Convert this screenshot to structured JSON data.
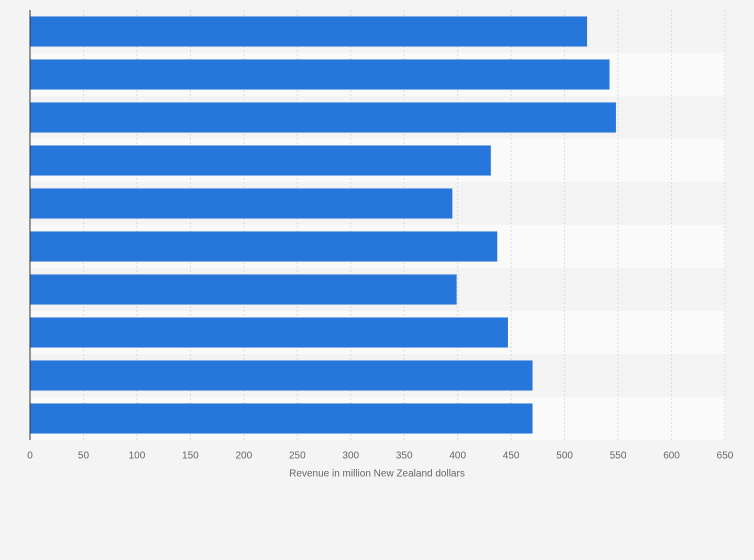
{
  "chart_data": {
    "type": "barh",
    "categories": [
      null,
      null,
      null,
      null,
      null,
      null,
      null,
      null,
      null,
      null
    ],
    "values": [
      521,
      542,
      548,
      431,
      395,
      437,
      399,
      447,
      470,
      470
    ],
    "color": "#2776dc",
    "xlabel": "Revenue in million New Zealand dollars",
    "xlim": [
      0,
      650
    ],
    "xticks": [
      0,
      50,
      100,
      150,
      200,
      250,
      300,
      350,
      400,
      450,
      500,
      550,
      600,
      650
    ],
    "grid": true
  }
}
